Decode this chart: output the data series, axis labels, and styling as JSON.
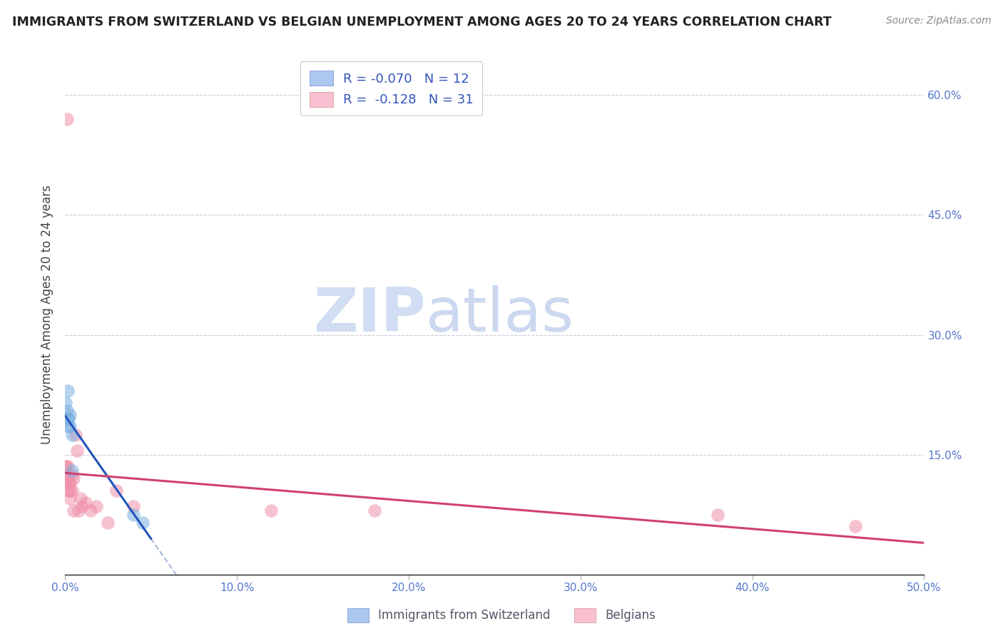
{
  "title": "IMMIGRANTS FROM SWITZERLAND VS BELGIAN UNEMPLOYMENT AMONG AGES 20 TO 24 YEARS CORRELATION CHART",
  "source": "Source: ZipAtlas.com",
  "ylabel": "Unemployment Among Ages 20 to 24 years",
  "xlim": [
    0.0,
    0.5
  ],
  "ylim": [
    0.0,
    0.65
  ],
  "xticks": [
    0.0,
    0.1,
    0.2,
    0.3,
    0.4,
    0.5
  ],
  "xtick_labels": [
    "0.0%",
    "10.0%",
    "20.0%",
    "30.0%",
    "40.0%",
    "50.0%"
  ],
  "yticks": [
    0.0,
    0.15,
    0.3,
    0.45,
    0.6
  ],
  "right_ytick_labels": [
    "",
    "15.0%",
    "30.0%",
    "45.0%",
    "60.0%"
  ],
  "swiss_R": -0.07,
  "swiss_N": 12,
  "belgian_R": -0.128,
  "belgian_N": 31,
  "swiss_scatter_color": "#7ab0e0",
  "swiss_fill_color": "#aac8f0",
  "belgian_scatter_color": "#f090a8",
  "belgian_fill_color": "#f8c0d0",
  "swiss_line_color": "#2255bb",
  "belgian_line_color": "#d04070",
  "dashed_line_color": "#a8b8d8",
  "watermark_zip_color": "#c8d8f0",
  "watermark_atlas_color": "#b0c4e8",
  "background_color": "#ffffff",
  "swiss_x": [
    0.0005,
    0.001,
    0.001,
    0.0015,
    0.002,
    0.002,
    0.003,
    0.003,
    0.004,
    0.004,
    0.04,
    0.045
  ],
  "swiss_y": [
    0.215,
    0.205,
    0.195,
    0.23,
    0.195,
    0.185,
    0.2,
    0.185,
    0.175,
    0.13,
    0.075,
    0.065
  ],
  "belgian_x": [
    0.0002,
    0.0004,
    0.0006,
    0.001,
    0.001,
    0.0015,
    0.002,
    0.002,
    0.002,
    0.003,
    0.003,
    0.003,
    0.004,
    0.004,
    0.005,
    0.005,
    0.006,
    0.007,
    0.008,
    0.009,
    0.01,
    0.012,
    0.015,
    0.018,
    0.025,
    0.03,
    0.04,
    0.12,
    0.18,
    0.38,
    0.46
  ],
  "belgian_y": [
    0.135,
    0.135,
    0.12,
    0.57,
    0.12,
    0.135,
    0.115,
    0.125,
    0.105,
    0.115,
    0.105,
    0.095,
    0.125,
    0.105,
    0.12,
    0.08,
    0.175,
    0.155,
    0.08,
    0.095,
    0.085,
    0.09,
    0.08,
    0.085,
    0.065,
    0.105,
    0.085,
    0.08,
    0.08,
    0.075,
    0.06
  ],
  "swiss_line_x": [
    0.0,
    0.05
  ],
  "belgian_line_x": [
    0.0,
    0.5
  ],
  "dashed_line_x": [
    0.0,
    0.5
  ]
}
